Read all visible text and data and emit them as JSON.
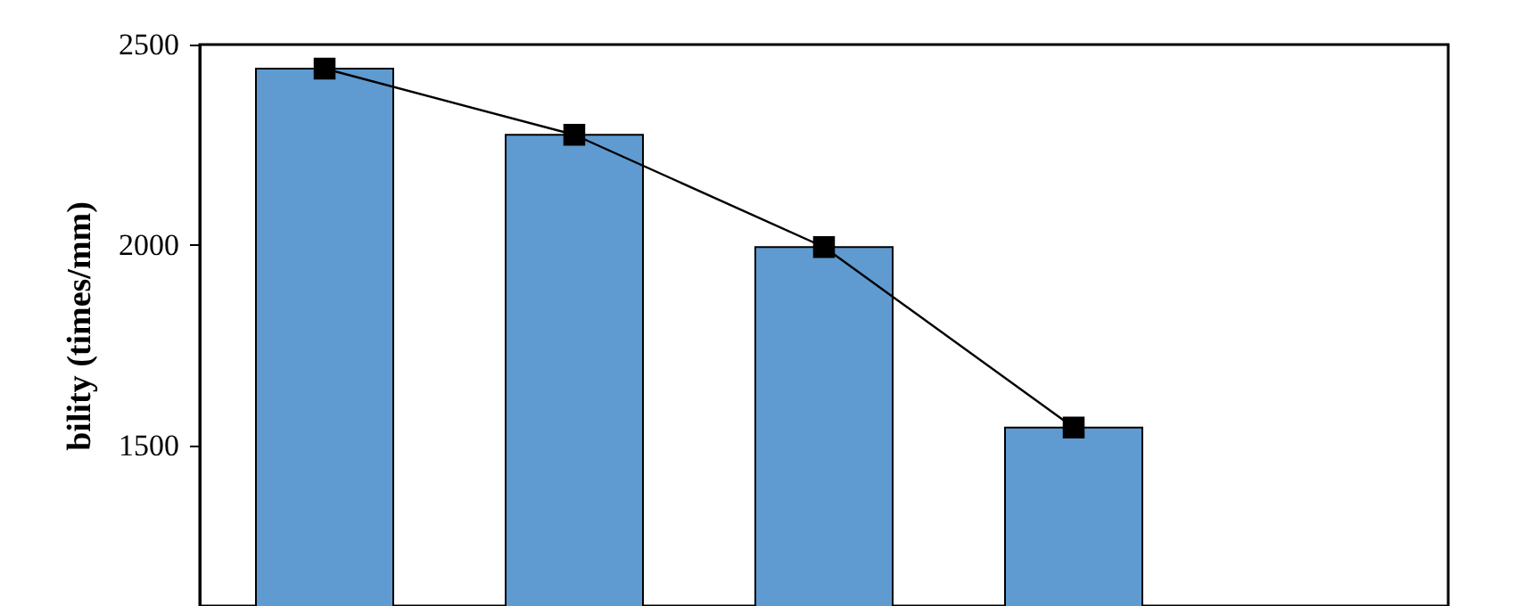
{
  "chart_data": {
    "type": "bar",
    "ylabel": "bility (times/mm)",
    "categories": [
      null,
      null,
      null,
      null,
      null
    ],
    "series": [
      {
        "color": "#5f9bd0",
        "values": [
          2440,
          2275,
          1995,
          1545,
          null
        ]
      },
      {
        "type": "line",
        "color": "#000000",
        "marker": "square",
        "values": [
          2440,
          2275,
          1995,
          1545,
          null
        ]
      }
    ],
    "ylim": [
      1100,
      2500
    ],
    "yticks": [
      1500,
      2000,
      2500
    ],
    "tick_labels": "y",
    "grid": false
  }
}
